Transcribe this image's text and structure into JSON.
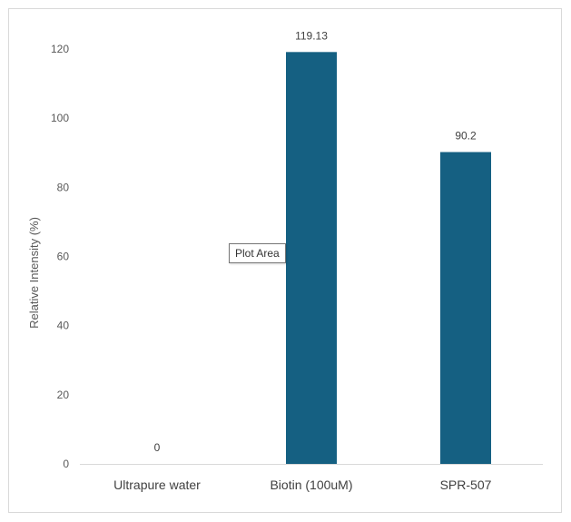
{
  "chart_data": {
    "type": "bar",
    "categories": [
      "Ultrapure water",
      "Biotin (100uM)",
      "SPR-507"
    ],
    "values": [
      0,
      119.13,
      90.2
    ],
    "data_labels": [
      "0",
      "119.13",
      "90.2"
    ],
    "title": "",
    "xlabel": "",
    "ylabel": "Relative Intensity (%)",
    "ylim": [
      0,
      120
    ],
    "yticks": [
      0,
      20,
      40,
      60,
      80,
      100,
      120
    ],
    "grid": false,
    "legend": "none",
    "bar_color": "#156082"
  },
  "tooltip": {
    "text": "Plot Area"
  }
}
